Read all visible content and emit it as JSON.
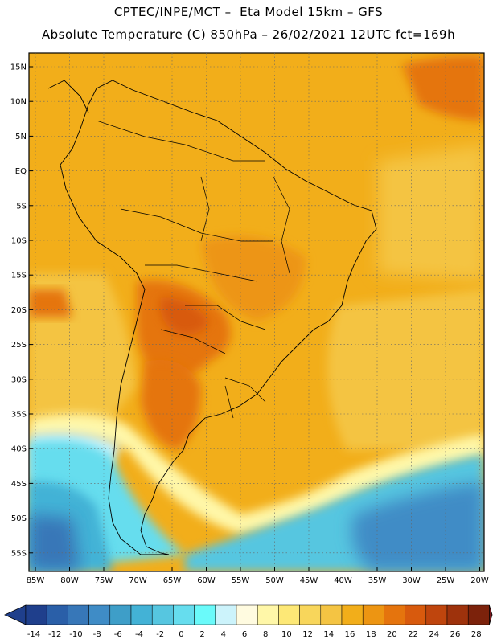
{
  "header": {
    "line1": "CPTEC/INPE/MCT –  Eta Model 15km – GFS",
    "line2": "Absolute Temperature (C) 850hPa – 26/02/2021 12UTC fct=169h"
  },
  "axes": {
    "lat_labels": [
      "15N",
      "10N",
      "5N",
      "EQ",
      "5S",
      "10S",
      "15S",
      "20S",
      "25S",
      "30S",
      "35S",
      "40S",
      "45S",
      "50S",
      "55S"
    ],
    "lon_labels": [
      "85W",
      "80W",
      "75W",
      "70W",
      "65W",
      "60W",
      "55W",
      "50W",
      "45W",
      "40W",
      "35W",
      "30W",
      "25W",
      "20W"
    ]
  },
  "legend": {
    "levels": [
      "-14",
      "-12",
      "-10",
      "-8",
      "-6",
      "-4",
      "-2",
      "0",
      "2",
      "4",
      "6",
      "8",
      "10",
      "12",
      "14",
      "16",
      "18",
      "20",
      "22",
      "24",
      "26",
      "28"
    ],
    "colors": [
      "#1f3f8c",
      "#2a5fa8",
      "#3777b8",
      "#3f8cc6",
      "#3e9ec8",
      "#43b2d6",
      "#56c6e0",
      "#66ddee",
      "#6afafa",
      "#ccf3fb",
      "#fffbe0",
      "#fff7a8",
      "#fde876",
      "#f8d65b",
      "#f4c443",
      "#f2ae1a",
      "#ed9512",
      "#e5740d",
      "#d85a0d",
      "#bf450d",
      "#9e320c",
      "#7c220b"
    ],
    "end_left_color": "#1f3f8c",
    "end_right_color": "#7c1a1e"
  }
}
